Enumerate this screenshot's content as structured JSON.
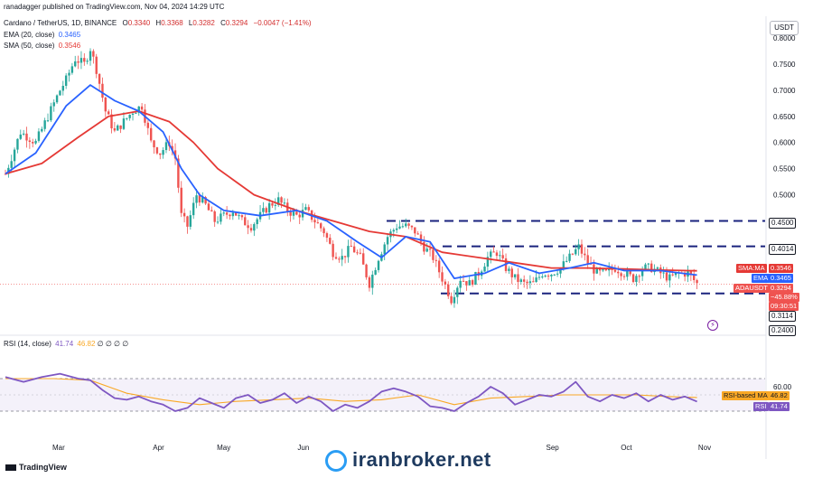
{
  "header": {
    "published_by": "ranadagger published on TradingView.com, Nov 04, 2024 14:29 UTC"
  },
  "symbol": {
    "title": "Cardano / TetherUS, 1D, BINANCE",
    "o_label": "O",
    "o_value": "0.3340",
    "h_label": "H",
    "h_value": "0.3368",
    "l_label": "L",
    "l_value": "0.3282",
    "c_label": "C",
    "c_value": "0.3294",
    "change": "−0.0047 (−1.41%)"
  },
  "indicators": {
    "ema_label": "EMA (20, close)",
    "ema_value": "0.3465",
    "sma_label": "SMA (50, close)",
    "sma_value": "0.3546",
    "rsi_label": "RSI (14, close)",
    "rsi_value": "41.74",
    "rsi_ma_value": "46.82",
    "rsi_extra": "∅ ∅ ∅ ∅"
  },
  "currency": "USDT",
  "price_tags": {
    "sma_tag_label": "SMA:MA",
    "sma_tag_value": "0.3546",
    "ema_tag_label": "EMA",
    "ema_tag_value": "0.3465",
    "pair_tag_label": "ADAUSDT",
    "pair_tag_value": "0.3294",
    "pct_value": "−45.88%",
    "countdown": "09:30:51",
    "level_4500": "0.4500",
    "level_4014": "0.4014",
    "level_3114": "0.3114",
    "level_2400": "0.2400",
    "rsi_ma_tag_label": "RSI-based MA",
    "rsi_ma_tag_value": "46.82",
    "rsi_tag_label": "RSI",
    "rsi_tag_value": "41.74"
  },
  "footer": {
    "logo": "TradingView"
  },
  "watermark": "iranbroker.net",
  "colors": {
    "ema": "#2962ff",
    "sma": "#e53935",
    "up": "#26a69a",
    "down": "#ef5350",
    "level": "#1a237e",
    "rsi": "#7e57c2",
    "rsi_ma": "#f9a825",
    "rsi_band": "#ede7f6"
  },
  "chart_data": [
    {
      "type": "candlestick",
      "title": "Cardano / TetherUS, 1D, BINANCE",
      "yaxis_ticks": [
        "0.8000",
        "0.7500",
        "0.7000",
        "0.6500",
        "0.6000",
        "0.5500",
        "0.5000"
      ],
      "ylim": [
        0.24,
        0.8
      ],
      "xaxis_ticks": [
        "Mar",
        "Apr",
        "May",
        "Jun",
        "Sep",
        "Oct",
        "Nov"
      ],
      "horizontal_levels": [
        0.45,
        0.4014,
        0.3114
      ],
      "price_path": [
        [
          0,
          0.54
        ],
        [
          5,
          0.62
        ],
        [
          10,
          0.6
        ],
        [
          14,
          0.65
        ],
        [
          18,
          0.7
        ],
        [
          20,
          0.72
        ],
        [
          23,
          0.76
        ],
        [
          26,
          0.75
        ],
        [
          28,
          0.78
        ],
        [
          30,
          0.74
        ],
        [
          33,
          0.66
        ],
        [
          36,
          0.62
        ],
        [
          39,
          0.64
        ],
        [
          42,
          0.66
        ],
        [
          45,
          0.67
        ],
        [
          48,
          0.6
        ],
        [
          51,
          0.58
        ],
        [
          54,
          0.6
        ],
        [
          56,
          0.57
        ],
        [
          58,
          0.46
        ],
        [
          60,
          0.44
        ],
        [
          63,
          0.5
        ],
        [
          66,
          0.48
        ],
        [
          69,
          0.45
        ],
        [
          72,
          0.46
        ],
        [
          75,
          0.47
        ],
        [
          78,
          0.45
        ],
        [
          81,
          0.44
        ],
        [
          84,
          0.46
        ],
        [
          87,
          0.48
        ],
        [
          90,
          0.49
        ],
        [
          93,
          0.47
        ],
        [
          96,
          0.46
        ],
        [
          99,
          0.47
        ],
        [
          102,
          0.45
        ],
        [
          105,
          0.43
        ],
        [
          108,
          0.39
        ],
        [
          111,
          0.38
        ],
        [
          114,
          0.4
        ],
        [
          117,
          0.38
        ],
        [
          120,
          0.33
        ],
        [
          123,
          0.38
        ],
        [
          126,
          0.42
        ],
        [
          129,
          0.44
        ],
        [
          132,
          0.44
        ],
        [
          135,
          0.43
        ],
        [
          138,
          0.4
        ],
        [
          141,
          0.38
        ],
        [
          144,
          0.34
        ],
        [
          147,
          0.3
        ],
        [
          150,
          0.34
        ],
        [
          153,
          0.33
        ],
        [
          156,
          0.35
        ],
        [
          159,
          0.38
        ],
        [
          162,
          0.39
        ],
        [
          165,
          0.36
        ],
        [
          168,
          0.34
        ],
        [
          171,
          0.33
        ],
        [
          174,
          0.33
        ],
        [
          177,
          0.35
        ],
        [
          180,
          0.35
        ],
        [
          183,
          0.36
        ],
        [
          186,
          0.38
        ],
        [
          189,
          0.4
        ],
        [
          192,
          0.37
        ],
        [
          195,
          0.35
        ],
        [
          198,
          0.35
        ],
        [
          201,
          0.36
        ],
        [
          204,
          0.35
        ],
        [
          207,
          0.34
        ],
        [
          210,
          0.36
        ],
        [
          213,
          0.36
        ],
        [
          216,
          0.35
        ],
        [
          219,
          0.34
        ],
        [
          222,
          0.35
        ],
        [
          225,
          0.35
        ],
        [
          228,
          0.33
        ]
      ],
      "ema20": [
        [
          0,
          0.54
        ],
        [
          10,
          0.58
        ],
        [
          20,
          0.67
        ],
        [
          28,
          0.71
        ],
        [
          36,
          0.68
        ],
        [
          44,
          0.66
        ],
        [
          52,
          0.62
        ],
        [
          58,
          0.55
        ],
        [
          64,
          0.5
        ],
        [
          72,
          0.47
        ],
        [
          84,
          0.46
        ],
        [
          96,
          0.47
        ],
        [
          106,
          0.45
        ],
        [
          116,
          0.41
        ],
        [
          124,
          0.38
        ],
        [
          132,
          0.42
        ],
        [
          140,
          0.41
        ],
        [
          148,
          0.34
        ],
        [
          158,
          0.35
        ],
        [
          166,
          0.37
        ],
        [
          176,
          0.35
        ],
        [
          186,
          0.36
        ],
        [
          194,
          0.37
        ],
        [
          204,
          0.355
        ],
        [
          216,
          0.355
        ],
        [
          228,
          0.3465
        ]
      ],
      "sma50": [
        [
          0,
          0.54
        ],
        [
          12,
          0.56
        ],
        [
          24,
          0.61
        ],
        [
          34,
          0.65
        ],
        [
          44,
          0.66
        ],
        [
          54,
          0.64
        ],
        [
          62,
          0.6
        ],
        [
          70,
          0.55
        ],
        [
          82,
          0.5
        ],
        [
          96,
          0.47
        ],
        [
          108,
          0.45
        ],
        [
          120,
          0.43
        ],
        [
          132,
          0.42
        ],
        [
          144,
          0.39
        ],
        [
          156,
          0.38
        ],
        [
          168,
          0.37
        ],
        [
          180,
          0.36
        ],
        [
          192,
          0.36
        ],
        [
          204,
          0.358
        ],
        [
          216,
          0.356
        ],
        [
          228,
          0.3546
        ]
      ]
    },
    {
      "type": "line",
      "title": "RSI (14, close)",
      "yaxis_ticks": [
        "60.00"
      ],
      "bands": [
        70,
        30
      ],
      "rsi": [
        [
          0,
          72
        ],
        [
          6,
          66
        ],
        [
          12,
          72
        ],
        [
          18,
          76
        ],
        [
          24,
          70
        ],
        [
          28,
          68
        ],
        [
          32,
          56
        ],
        [
          36,
          46
        ],
        [
          40,
          44
        ],
        [
          44,
          48
        ],
        [
          48,
          42
        ],
        [
          52,
          38
        ],
        [
          56,
          30
        ],
        [
          60,
          34
        ],
        [
          64,
          46
        ],
        [
          68,
          40
        ],
        [
          72,
          34
        ],
        [
          76,
          46
        ],
        [
          80,
          50
        ],
        [
          84,
          40
        ],
        [
          88,
          44
        ],
        [
          92,
          52
        ],
        [
          96,
          40
        ],
        [
          100,
          48
        ],
        [
          104,
          42
        ],
        [
          108,
          30
        ],
        [
          112,
          38
        ],
        [
          116,
          34
        ],
        [
          120,
          42
        ],
        [
          124,
          54
        ],
        [
          128,
          58
        ],
        [
          132,
          54
        ],
        [
          136,
          48
        ],
        [
          140,
          36
        ],
        [
          144,
          34
        ],
        [
          148,
          30
        ],
        [
          152,
          40
        ],
        [
          156,
          48
        ],
        [
          160,
          60
        ],
        [
          164,
          52
        ],
        [
          168,
          38
        ],
        [
          172,
          44
        ],
        [
          176,
          50
        ],
        [
          180,
          48
        ],
        [
          184,
          54
        ],
        [
          188,
          66
        ],
        [
          192,
          48
        ],
        [
          196,
          42
        ],
        [
          200,
          50
        ],
        [
          204,
          46
        ],
        [
          208,
          52
        ],
        [
          212,
          42
        ],
        [
          216,
          50
        ],
        [
          220,
          44
        ],
        [
          224,
          48
        ],
        [
          228,
          41.74
        ]
      ],
      "rsi_ma": [
        [
          0,
          70
        ],
        [
          16,
          70
        ],
        [
          28,
          68
        ],
        [
          40,
          52
        ],
        [
          52,
          44
        ],
        [
          64,
          38
        ],
        [
          76,
          42
        ],
        [
          88,
          44
        ],
        [
          100,
          46
        ],
        [
          112,
          42
        ],
        [
          124,
          44
        ],
        [
          136,
          50
        ],
        [
          148,
          38
        ],
        [
          160,
          46
        ],
        [
          172,
          48
        ],
        [
          184,
          50
        ],
        [
          196,
          50
        ],
        [
          208,
          50
        ],
        [
          218,
          48
        ],
        [
          228,
          46.82
        ]
      ]
    }
  ]
}
